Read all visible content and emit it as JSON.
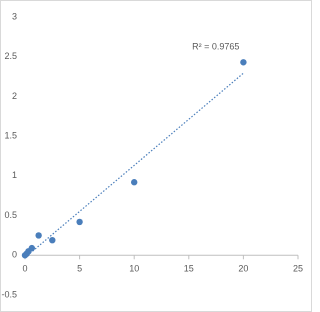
{
  "chart_data": {
    "type": "scatter",
    "annotation": "R² = 0.9765",
    "series": [
      {
        "color": "#4a7ebb",
        "x": [
          0,
          0.156,
          0.3125,
          0.625,
          1.25,
          2.5,
          5,
          10,
          20
        ],
        "values": [
          0,
          0.02,
          0.05,
          0.09,
          0.25,
          0.19,
          0.42,
          0.92,
          2.43
        ]
      }
    ],
    "xlim": [
      0,
      25
    ],
    "xticks": [
      0,
      5,
      10,
      15,
      20,
      25
    ],
    "ylim": [
      -0.5,
      3
    ],
    "yticks": [
      -0.5,
      0,
      0.5,
      1,
      1.5,
      2,
      2.5,
      3
    ],
    "trendline": "linear",
    "grid": false
  }
}
